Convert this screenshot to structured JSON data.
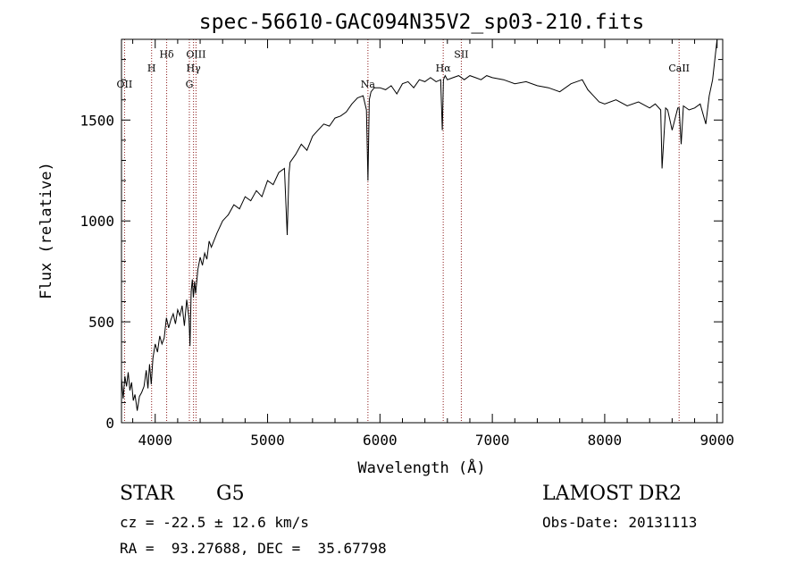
{
  "chart_data": {
    "type": "line",
    "title": "spec-56610-GAC094N35V2_sp03-210.fits",
    "xlabel": "Wavelength (Å)",
    "ylabel": "Flux (relative)",
    "xlim": [
      3700,
      9050
    ],
    "ylim": [
      0,
      1900
    ],
    "xticks": [
      4000,
      5000,
      6000,
      7000,
      8000,
      9000
    ],
    "yticks": [
      0,
      500,
      1000,
      1500
    ],
    "grid": false,
    "series": [
      {
        "x": [
          3700,
          3715,
          3730,
          3745,
          3760,
          3775,
          3790,
          3805,
          3820,
          3840,
          3860,
          3880,
          3900,
          3920,
          3935,
          3950,
          3965,
          3980,
          4000,
          4020,
          4040,
          4060,
          4080,
          4100,
          4120,
          4140,
          4160,
          4180,
          4200,
          4220,
          4240,
          4260,
          4280,
          4300,
          4310,
          4320,
          4330,
          4340,
          4350,
          4360,
          4380,
          4400,
          4420,
          4440,
          4460,
          4480,
          4500,
          4550,
          4600,
          4650,
          4700,
          4750,
          4800,
          4850,
          4900,
          4950,
          5000,
          5050,
          5100,
          5150,
          5175,
          5190,
          5200,
          5250,
          5300,
          5350,
          5400,
          5450,
          5500,
          5550,
          5600,
          5650,
          5700,
          5750,
          5800,
          5850,
          5880,
          5893,
          5905,
          5920,
          5950,
          6000,
          6050,
          6100,
          6150,
          6200,
          6250,
          6300,
          6350,
          6400,
          6450,
          6500,
          6540,
          6555,
          6565,
          6580,
          6600,
          6650,
          6700,
          6750,
          6800,
          6850,
          6900,
          6950,
          7000,
          7100,
          7200,
          7300,
          7400,
          7500,
          7600,
          7700,
          7800,
          7850,
          7900,
          7950,
          8000,
          8100,
          8200,
          8300,
          8400,
          8450,
          8498,
          8510,
          8542,
          8560,
          8600,
          8650,
          8662,
          8680,
          8700,
          8750,
          8800,
          8850,
          8900,
          8930,
          8960,
          8980,
          9000
        ],
        "values": [
          220,
          120,
          230,
          180,
          250,
          160,
          200,
          110,
          140,
          60,
          130,
          150,
          180,
          260,
          170,
          290,
          190,
          320,
          390,
          350,
          430,
          390,
          420,
          520,
          470,
          510,
          540,
          490,
          560,
          530,
          580,
          480,
          610,
          520,
          380,
          650,
          710,
          620,
          700,
          640,
          760,
          820,
          780,
          840,
          810,
          900,
          870,
          940,
          1000,
          1030,
          1080,
          1060,
          1120,
          1100,
          1150,
          1120,
          1200,
          1180,
          1240,
          1260,
          930,
          1230,
          1290,
          1330,
          1380,
          1350,
          1420,
          1450,
          1480,
          1470,
          1510,
          1520,
          1540,
          1580,
          1610,
          1620,
          1550,
          1200,
          1600,
          1640,
          1660,
          1660,
          1650,
          1670,
          1630,
          1680,
          1690,
          1660,
          1700,
          1690,
          1710,
          1690,
          1700,
          1450,
          1700,
          1720,
          1700,
          1710,
          1720,
          1700,
          1720,
          1710,
          1700,
          1720,
          1710,
          1700,
          1680,
          1690,
          1670,
          1660,
          1640,
          1680,
          1700,
          1650,
          1620,
          1590,
          1580,
          1600,
          1570,
          1590,
          1560,
          1580,
          1550,
          1260,
          1560,
          1550,
          1450,
          1560,
          1560,
          1380,
          1570,
          1550,
          1560,
          1580,
          1480,
          1620,
          1700,
          1800,
          1900
        ]
      }
    ],
    "lines": [
      {
        "label": "OII",
        "x": 3727,
        "label_flux": 1660
      },
      {
        "label": "H",
        "x": 3968,
        "label_flux": 1740
      },
      {
        "label": "Hδ",
        "x": 4102,
        "label_flux": 1810
      },
      {
        "label": "G",
        "x": 4304,
        "label_flux": 1660
      },
      {
        "label": "Hγ",
        "x": 4341,
        "label_flux": 1740
      },
      {
        "label": "OIII",
        "x": 4363,
        "label_flux": 1810
      },
      {
        "label": "Na",
        "x": 5893,
        "label_flux": 1660
      },
      {
        "label": "Hα",
        "x": 6563,
        "label_flux": 1740
      },
      {
        "label": "SII",
        "x": 6724,
        "label_flux": 1810
      },
      {
        "label": "CaII",
        "x": 8662,
        "label_flux": 1740
      }
    ]
  },
  "info": {
    "object_class": "STAR",
    "subclass": "G5",
    "survey": "LAMOST DR2",
    "redshift": "cz = -22.5 ± 12.6 km/s",
    "obs_date": "Obs-Date: 20131113",
    "coords": "RA =  93.27688, DEC =  35.67798"
  }
}
